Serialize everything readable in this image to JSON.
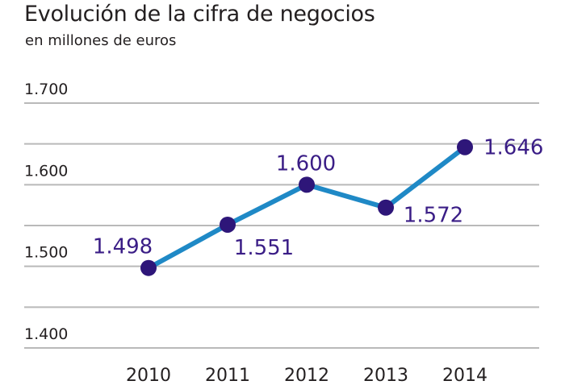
{
  "title": "Evolución de la cifra de negocios",
  "subtitle": "en millones de euros",
  "colors": {
    "line": "#1f89c6",
    "marker": "#2e1679",
    "label": "#3a1d86",
    "grid": "#b9b9b9"
  },
  "chart_data": {
    "type": "line",
    "title": "Evolución de la cifra de negocios",
    "subtitle": "en millones de euros",
    "xlabel": "",
    "ylabel": "",
    "categories": [
      "2010",
      "2011",
      "2012",
      "2013",
      "2014"
    ],
    "values": [
      1498,
      1551,
      1600,
      1572,
      1646
    ],
    "value_labels": [
      "1.498",
      "1.551",
      "1.600",
      "1.572",
      "1.646"
    ],
    "ylim": [
      1400,
      1700
    ],
    "yticks": [
      1400,
      1500,
      1600,
      1700
    ],
    "ytick_labels": [
      "1.400",
      "1.500",
      "1.600",
      "1.700"
    ],
    "grid": true,
    "legend": "none"
  }
}
